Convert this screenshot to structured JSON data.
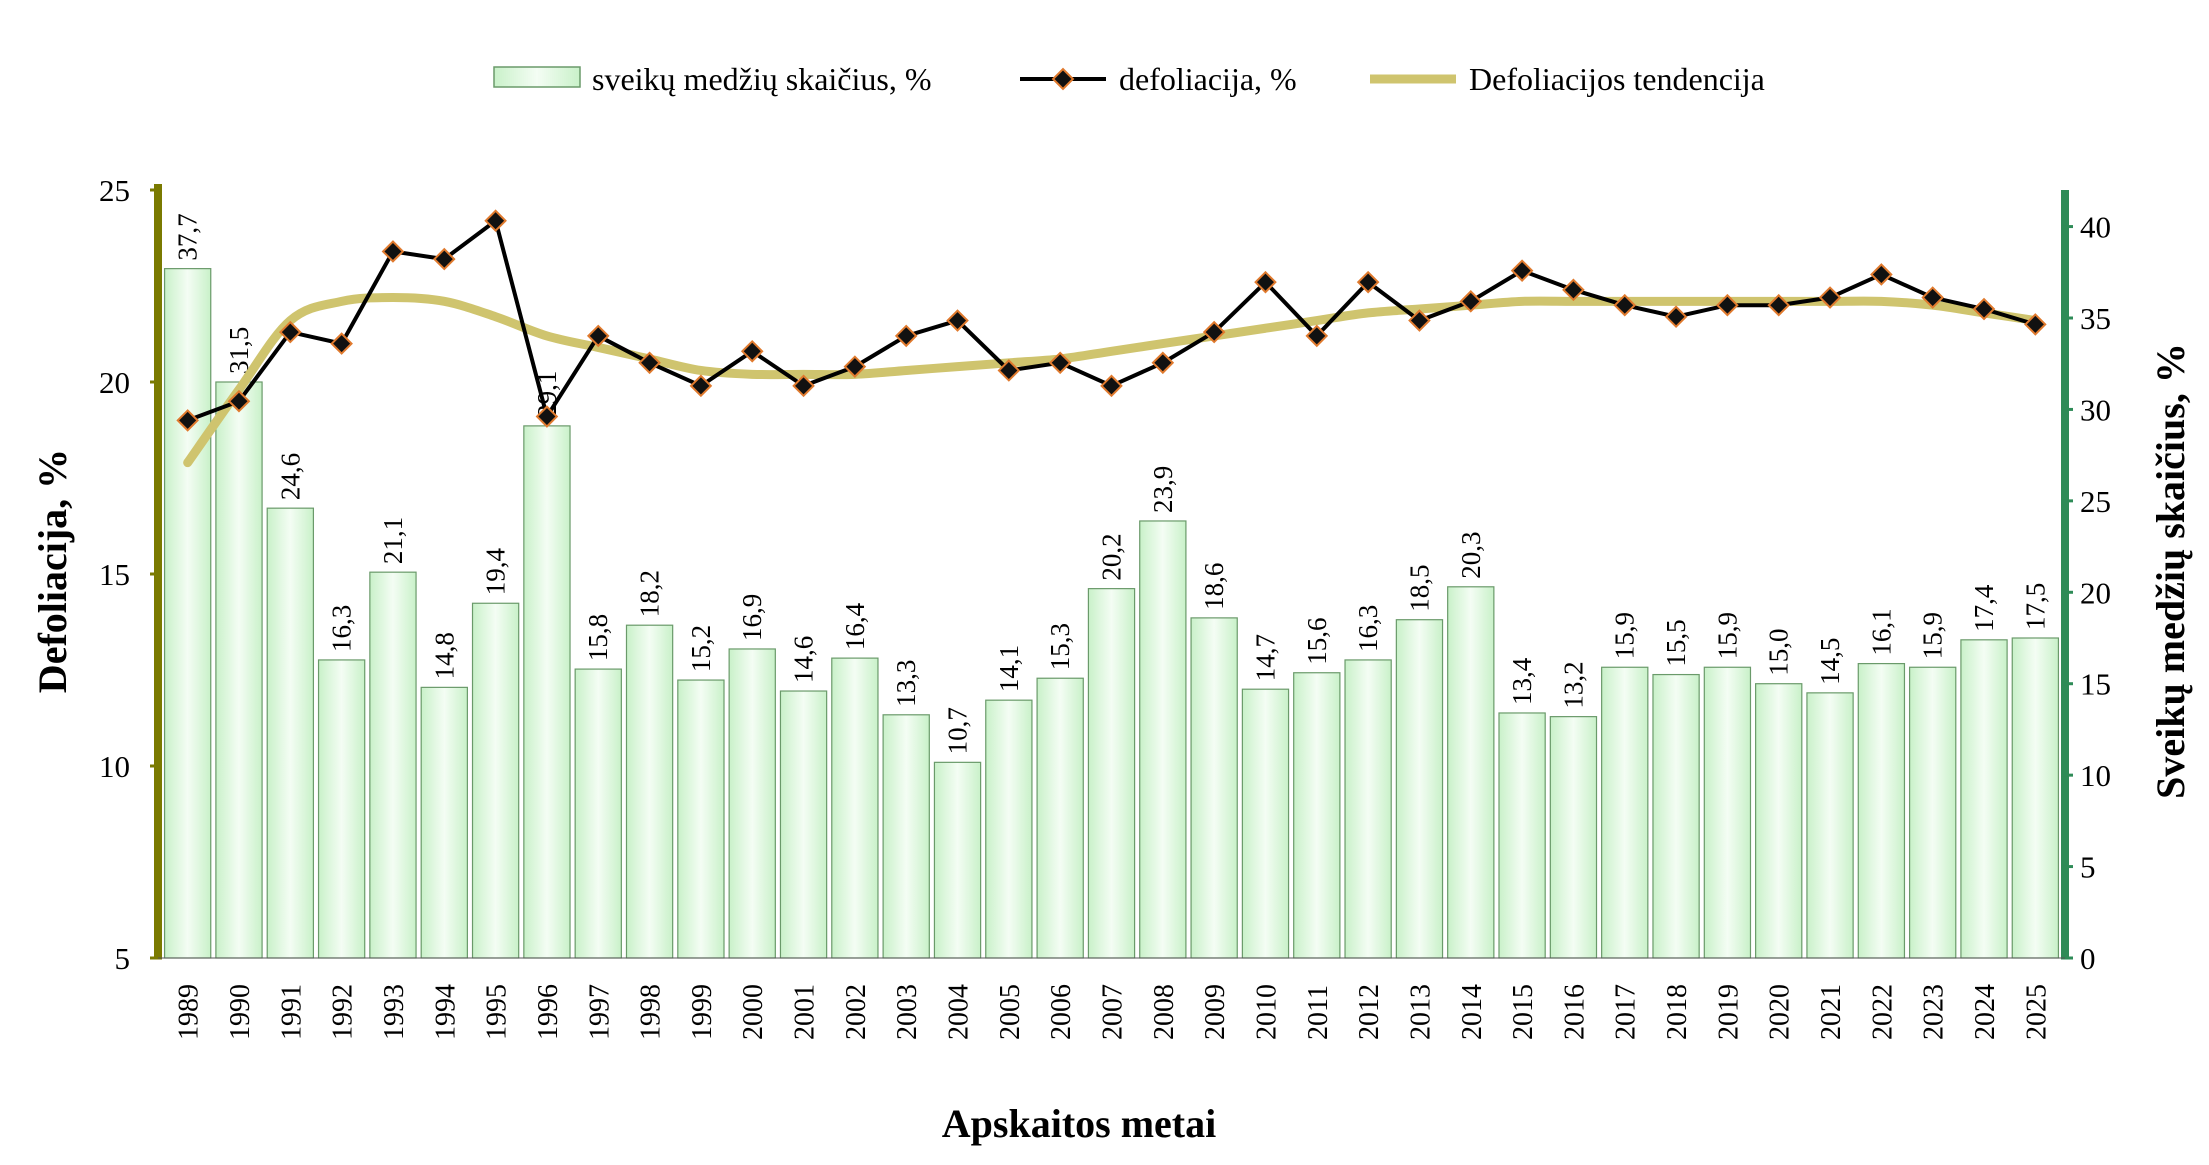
{
  "legend": {
    "bars": "sveikų medžių skaičius, %",
    "line": "defoliacija, %",
    "trend": "Defoliacijos tendencija"
  },
  "axes": {
    "x_title": "Apskaitos metai",
    "y_left_title": "Defoliacija, %",
    "y_right_title": "Sveikų medžių skaičius, %"
  },
  "colors": {
    "bar_fill": "#d8f7d8",
    "bar_highlight": "#f3fdf3",
    "bar_stroke": "#6a9a6a",
    "line": "#000000",
    "marker_fill": "#111111",
    "marker_edge": "#e07a2e",
    "trend": "#cfc46e",
    "left_axis": "#7a7a00",
    "right_axis": "#2e8b57"
  },
  "chart_data": {
    "type": "bar",
    "categories": [
      "1989",
      "1990",
      "1991",
      "1992",
      "1993",
      "1994",
      "1995",
      "1996",
      "1997",
      "1998",
      "1999",
      "2000",
      "2001",
      "2002",
      "2003",
      "2004",
      "2005",
      "2006",
      "2007",
      "2008",
      "2009",
      "2010",
      "2011",
      "2012",
      "2013",
      "2014",
      "2015",
      "2016",
      "2017",
      "2018",
      "2019",
      "2020",
      "2021",
      "2022",
      "2023",
      "2024",
      "2025"
    ],
    "series": [
      {
        "name": "sveikų medžių skaičius, %",
        "type": "bar",
        "axis": "right",
        "values": [
          37.7,
          31.5,
          24.6,
          16.3,
          21.1,
          14.8,
          19.4,
          29.1,
          15.8,
          18.2,
          15.2,
          16.9,
          14.6,
          16.4,
          13.3,
          10.7,
          14.1,
          15.3,
          20.2,
          23.9,
          18.6,
          14.7,
          15.6,
          16.3,
          18.5,
          20.3,
          13.4,
          13.2,
          15.9,
          15.5,
          15.9,
          15.0,
          14.5,
          16.1,
          15.9,
          17.4,
          17.5
        ],
        "labels": [
          "37,7",
          "31,5",
          "24,6",
          "16,3",
          "21,1",
          "14,8",
          "19,4",
          "29,1",
          "15,8",
          "18,2",
          "15,2",
          "16,9",
          "14,6",
          "16,4",
          "13,3",
          "10,7",
          "14,1",
          "15,3",
          "20,2",
          "23,9",
          "18,6",
          "14,7",
          "15,6",
          "16,3",
          "18,5",
          "20,3",
          "13,4",
          "13,2",
          "15,9",
          "15,5",
          "15,9",
          "15,0",
          "14,5",
          "16,1",
          "15,9",
          "17,4",
          "17,5"
        ]
      },
      {
        "name": "defoliacija, %",
        "type": "line",
        "axis": "left",
        "values": [
          19.0,
          19.5,
          21.3,
          21.0,
          23.4,
          23.2,
          24.2,
          19.1,
          21.2,
          20.5,
          19.9,
          20.8,
          19.9,
          20.4,
          21.2,
          21.6,
          20.3,
          20.5,
          19.9,
          20.5,
          21.3,
          22.6,
          21.2,
          22.6,
          21.6,
          22.1,
          22.9,
          22.4,
          22.0,
          21.7,
          22.0,
          22.0,
          22.2,
          22.8,
          22.2,
          21.9,
          21.5
        ]
      },
      {
        "name": "Defoliacijos tendencija",
        "type": "trend",
        "axis": "left",
        "values": [
          17.9,
          19.8,
          21.6,
          22.1,
          22.2,
          22.1,
          21.7,
          21.2,
          20.9,
          20.6,
          20.3,
          20.2,
          20.2,
          20.2,
          20.3,
          20.4,
          20.5,
          20.6,
          20.8,
          21.0,
          21.2,
          21.4,
          21.6,
          21.8,
          21.9,
          22.0,
          22.1,
          22.1,
          22.1,
          22.1,
          22.1,
          22.1,
          22.1,
          22.1,
          22.0,
          21.8,
          21.6
        ]
      }
    ],
    "y_left": {
      "min": 5,
      "max": 25,
      "step": 5,
      "ticks": [
        "5",
        "10",
        "15",
        "20",
        "25"
      ]
    },
    "y_right": {
      "min": 0,
      "max": 42,
      "step": 5,
      "ticks": [
        "0",
        "5",
        "10",
        "15",
        "20",
        "25",
        "30",
        "35",
        "40"
      ]
    },
    "legend_position": "top-center",
    "grid": false
  }
}
